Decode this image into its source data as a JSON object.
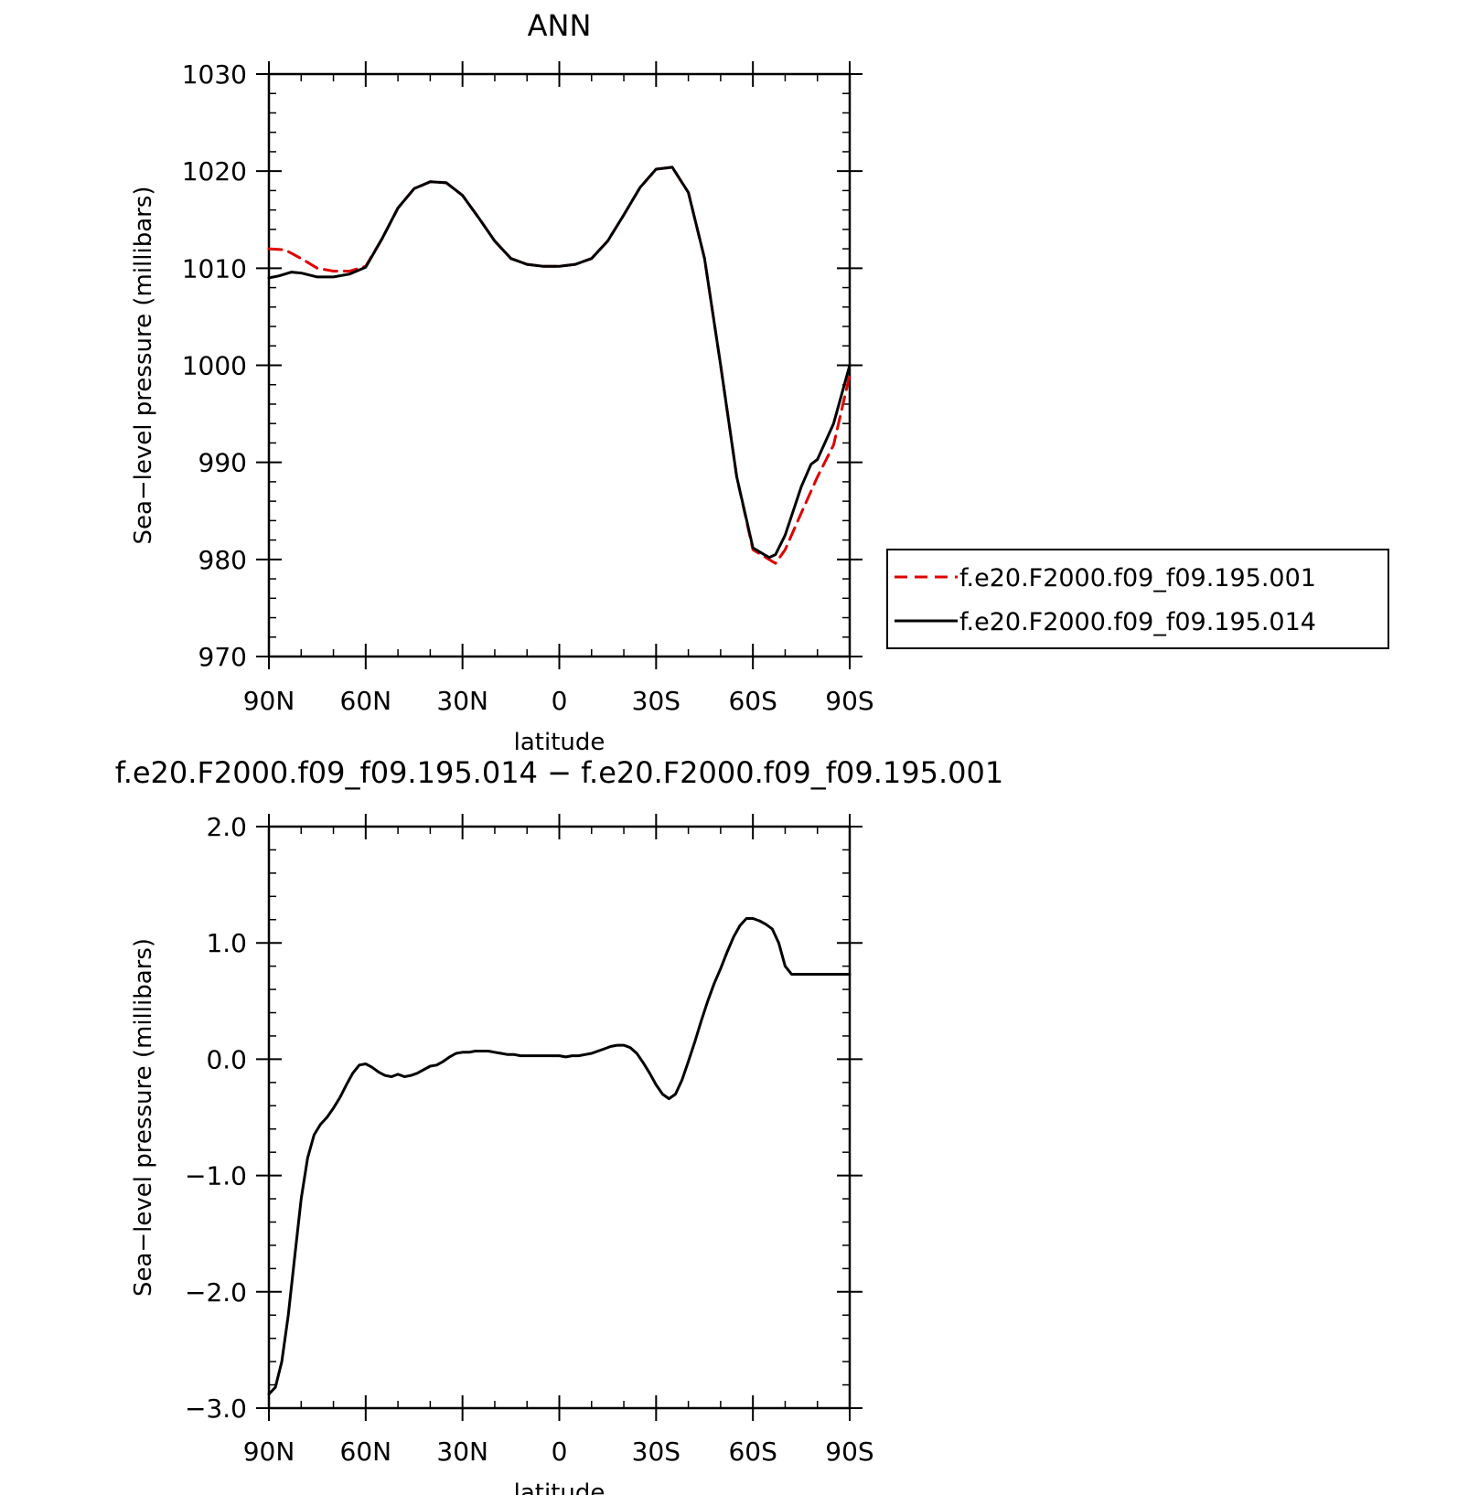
{
  "chart_data": [
    {
      "type": "line",
      "title": "ANN",
      "xlabel": "latitude",
      "ylabel": "Sea−level pressure (millibars)",
      "x_ticks": [
        "90N",
        "60N",
        "30N",
        "0",
        "30S",
        "60S",
        "90S"
      ],
      "y_ticks": [
        "1030",
        "1020",
        "1010",
        "1000",
        "990",
        "980",
        "970"
      ],
      "xlim": [
        90,
        -90
      ],
      "ylim": [
        970,
        1030
      ],
      "legend_position": "right",
      "series": [
        {
          "name": "f.e20.F2000.f09_f09.195.001",
          "color": "#e00000",
          "dash": "dashed",
          "x": [
            90,
            85,
            80,
            75,
            70,
            65,
            60,
            55,
            50,
            45,
            40,
            35,
            30,
            25,
            20,
            15,
            10,
            5,
            0,
            -5,
            -10,
            -15,
            -20,
            -25,
            -30,
            -35,
            -40,
            -45,
            -50,
            -55,
            -60,
            -65,
            -67,
            -70,
            -75,
            -80,
            -85,
            -90
          ],
          "values": [
            1012.0,
            1011.9,
            1011.0,
            1010.0,
            1009.7,
            1009.7,
            1010.2,
            1013.0,
            1016.2,
            1018.2,
            1018.9,
            1018.8,
            1017.5,
            1015.2,
            1012.8,
            1011.0,
            1010.4,
            1010.2,
            1010.2,
            1010.4,
            1011.0,
            1012.8,
            1015.5,
            1018.3,
            1020.2,
            1020.4,
            1017.8,
            1011.0,
            1000.0,
            988.5,
            981.0,
            980.0,
            979.6,
            981.0,
            984.8,
            988.5,
            991.8,
            999.0
          ]
        },
        {
          "name": "f.e20.F2000.f09_f09.195.014",
          "color": "#000000",
          "dash": "solid",
          "x": [
            90,
            87,
            83,
            80,
            75,
            70,
            65,
            60,
            55,
            50,
            45,
            40,
            35,
            30,
            25,
            20,
            15,
            10,
            5,
            0,
            -5,
            -10,
            -15,
            -20,
            -25,
            -30,
            -35,
            -40,
            -45,
            -50,
            -55,
            -60,
            -65,
            -67,
            -70,
            -75,
            -78,
            -80,
            -85,
            -90
          ],
          "values": [
            1009.0,
            1009.2,
            1009.6,
            1009.5,
            1009.1,
            1009.1,
            1009.4,
            1010.1,
            1013.0,
            1016.2,
            1018.2,
            1018.9,
            1018.8,
            1017.5,
            1015.2,
            1012.8,
            1011.0,
            1010.4,
            1010.2,
            1010.2,
            1010.4,
            1011.0,
            1012.8,
            1015.5,
            1018.3,
            1020.2,
            1020.4,
            1017.8,
            1011.0,
            1000.0,
            988.5,
            981.2,
            980.2,
            980.5,
            982.5,
            987.5,
            989.8,
            990.3,
            994.0,
            1000.0
          ]
        }
      ]
    },
    {
      "type": "line",
      "title": "f.e20.F2000.f09_f09.195.014 − f.e20.F2000.f09_f09.195.001",
      "xlabel": "latitude",
      "ylabel": "Sea−level pressure (millibars)",
      "x_ticks": [
        "90N",
        "60N",
        "30N",
        "0",
        "30S",
        "60S",
        "90S"
      ],
      "y_ticks": [
        "2.0",
        "1.0",
        "0.0",
        "−1.0",
        "−2.0",
        "−3.0"
      ],
      "xlim": [
        90,
        -90
      ],
      "ylim": [
        -3.0,
        2.0
      ],
      "series": [
        {
          "color": "#000000",
          "dash": "solid",
          "x": [
            90,
            88,
            86,
            84,
            82,
            80,
            78,
            76,
            74,
            72,
            70,
            68,
            66,
            64,
            62,
            60,
            58,
            56,
            54,
            52,
            50,
            48,
            46,
            44,
            42,
            40,
            38,
            36,
            34,
            32,
            30,
            28,
            26,
            24,
            22,
            20,
            18,
            16,
            14,
            12,
            10,
            8,
            6,
            4,
            2,
            0,
            -2,
            -4,
            -6,
            -8,
            -10,
            -12,
            -14,
            -16,
            -18,
            -20,
            -22,
            -24,
            -26,
            -28,
            -30,
            -32,
            -34,
            -36,
            -38,
            -40,
            -42,
            -44,
            -46,
            -48,
            -50,
            -52,
            -54,
            -56,
            -58,
            -60,
            -62,
            -64,
            -66,
            -68,
            -70,
            -72,
            -74,
            -76,
            -78,
            -80,
            -82,
            -84,
            -86,
            -88,
            -90
          ],
          "values": [
            -2.88,
            -2.82,
            -2.6,
            -2.2,
            -1.7,
            -1.2,
            -0.85,
            -0.65,
            -0.56,
            -0.5,
            -0.42,
            -0.33,
            -0.22,
            -0.12,
            -0.05,
            -0.04,
            -0.07,
            -0.11,
            -0.14,
            -0.15,
            -0.13,
            -0.15,
            -0.14,
            -0.12,
            -0.09,
            -0.06,
            -0.05,
            -0.02,
            0.02,
            0.05,
            0.06,
            0.06,
            0.07,
            0.07,
            0.07,
            0.06,
            0.05,
            0.04,
            0.04,
            0.03,
            0.03,
            0.03,
            0.03,
            0.03,
            0.03,
            0.03,
            0.02,
            0.03,
            0.03,
            0.04,
            0.05,
            0.07,
            0.09,
            0.11,
            0.12,
            0.12,
            0.1,
            0.05,
            -0.03,
            -0.12,
            -0.22,
            -0.3,
            -0.34,
            -0.3,
            -0.18,
            -0.02,
            0.15,
            0.33,
            0.5,
            0.65,
            0.78,
            0.92,
            1.05,
            1.15,
            1.21,
            1.21,
            1.19,
            1.16,
            1.12,
            1.0,
            0.8,
            0.73,
            0.73,
            0.73,
            0.73,
            0.73,
            0.73,
            0.73,
            0.73,
            0.73,
            0.73
          ]
        }
      ]
    }
  ]
}
